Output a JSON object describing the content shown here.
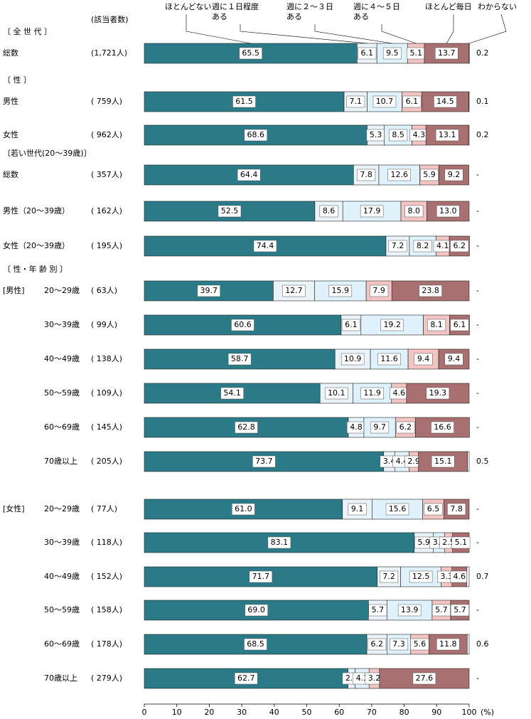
{
  "chart_data": {
    "type": "stacked-bar-horizontal",
    "count_header": "(該当者数)",
    "categories": [
      "総数",
      "男性",
      "女性",
      "総数",
      "男性（20～39歳）",
      "女性（20～39歳）",
      "20～29歳",
      "30～39歳",
      "40～49歳",
      "50～59歳",
      "60～69歳",
      "70歳以上",
      "20～29歳",
      "30～39歳",
      "40～49歳",
      "50～59歳",
      "60～69歳",
      "70歳以上"
    ],
    "counts": [
      "(1,721人)",
      "( 759人)",
      "( 962人)",
      "( 357人)",
      "( 162人)",
      "( 195人)",
      "( 63人)",
      "( 99人)",
      "( 138人)",
      "( 109人)",
      "( 145人)",
      "( 205人)",
      "( 77人)",
      "( 118人)",
      "( 152人)",
      "( 158人)",
      "( 178人)",
      "( 279人)"
    ],
    "section_titles": [
      "〔 全 世 代 〕",
      "〔 性 〕",
      null,
      "〔若い世代(20～39歳)〕",
      null,
      null,
      "〔 性・年 齢 別 〕",
      null,
      null,
      null,
      null,
      null,
      null,
      null,
      null,
      null,
      null,
      null
    ],
    "subgroups": [
      null,
      null,
      null,
      null,
      null,
      null,
      "[男性]",
      null,
      null,
      null,
      null,
      null,
      "[女性]",
      null,
      null,
      null,
      null,
      null
    ],
    "series": [
      {
        "name": "ほとんどない",
        "color": "#2a7a88",
        "values": [
          65.5,
          61.5,
          68.6,
          64.4,
          52.5,
          74.4,
          39.7,
          60.6,
          58.7,
          54.1,
          62.8,
          73.7,
          61.0,
          83.1,
          71.7,
          69.0,
          68.5,
          62.7
        ],
        "value_labels": [
          "65.5",
          "61.5",
          "68.6",
          "64.4",
          "52.5",
          "74.4",
          "39.7",
          "60.6",
          "58.7",
          "54.1",
          "62.8",
          "73.7",
          "61.0",
          "83.1",
          "71.7",
          "69.0",
          "68.5",
          "62.7"
        ]
      },
      {
        "name": "週に１日程度ある",
        "color": "#eaf3f8",
        "values": [
          6.1,
          7.1,
          5.3,
          7.8,
          8.6,
          7.2,
          12.7,
          6.1,
          10.9,
          10.1,
          4.8,
          3.4,
          9.1,
          5.9,
          7.2,
          5.7,
          6.2,
          2.2
        ],
        "value_labels": [
          "6.1",
          "7.1",
          "5.3",
          "7.8",
          "8.6",
          "7.2",
          "12.7",
          "6.1",
          "10.9",
          "10.1",
          "4.8",
          "3.4",
          "9.1",
          "5.9",
          "7.2",
          "5.7",
          "6.2",
          "2.2"
        ]
      },
      {
        "name": "週に２～３日ある",
        "color": "#dff2fb",
        "values": [
          9.5,
          10.7,
          8.5,
          12.6,
          17.9,
          8.2,
          15.9,
          19.2,
          11.6,
          11.9,
          9.7,
          4.4,
          15.6,
          3.4,
          12.5,
          13.9,
          7.3,
          4.3
        ],
        "value_labels": [
          "9.5",
          "10.7",
          "8.5",
          "12.6",
          "17.9",
          "8.2",
          "15.9",
          "19.2",
          "11.6",
          "11.9",
          "9.7",
          "4.4",
          "15.6",
          "3.4",
          "12.5",
          "13.9",
          "7.3",
          "4.3"
        ]
      },
      {
        "name": "週に４～５日ある",
        "color": "#f3c4c4",
        "values": [
          5.1,
          6.1,
          4.3,
          5.9,
          8.0,
          4.1,
          7.9,
          8.1,
          9.4,
          4.6,
          6.2,
          2.9,
          6.5,
          2.5,
          3.3,
          5.7,
          5.6,
          3.2
        ],
        "value_labels": [
          "5.1",
          "6.1",
          "4.3",
          "5.9",
          "8.0",
          "4.1",
          "7.9",
          "8.1",
          "9.4",
          "4.6",
          "6.2",
          "2.9",
          "6.5",
          "2.5",
          "3.3",
          "5.7",
          "5.6",
          "3.2"
        ]
      },
      {
        "name": "ほとんど毎日",
        "color": "#a87070",
        "values": [
          13.7,
          14.5,
          13.1,
          9.2,
          13.0,
          6.2,
          23.8,
          6.1,
          9.4,
          19.3,
          16.6,
          15.1,
          7.8,
          5.1,
          4.6,
          5.7,
          11.8,
          27.6
        ],
        "value_labels": [
          "13.7",
          "14.5",
          "13.1",
          "9.2",
          "13.0",
          "6.2",
          "23.8",
          "6.1",
          "9.4",
          "19.3",
          "16.6",
          "15.1",
          "7.8",
          "5.1",
          "4.6",
          "5.7",
          "11.8",
          "27.6"
        ]
      },
      {
        "name": "わからない",
        "color": "#ffffff",
        "values": [
          0.2,
          0.1,
          0.2,
          0,
          0,
          0,
          0,
          0,
          0,
          0,
          0,
          0.5,
          0,
          0,
          0.7,
          0,
          0.6,
          0
        ],
        "value_labels": [
          "0.2",
          "0.1",
          "0.2",
          "-",
          "-",
          "-",
          "-",
          "-",
          "-",
          "-",
          "-",
          "0.5",
          "-",
          "-",
          "0.7",
          "-",
          "0.6",
          "-"
        ]
      }
    ],
    "xlim": [
      0,
      100
    ],
    "xticks": [
      0,
      10,
      20,
      30,
      40,
      50,
      60,
      70,
      80,
      90,
      100
    ],
    "xlabel": "(%)"
  }
}
